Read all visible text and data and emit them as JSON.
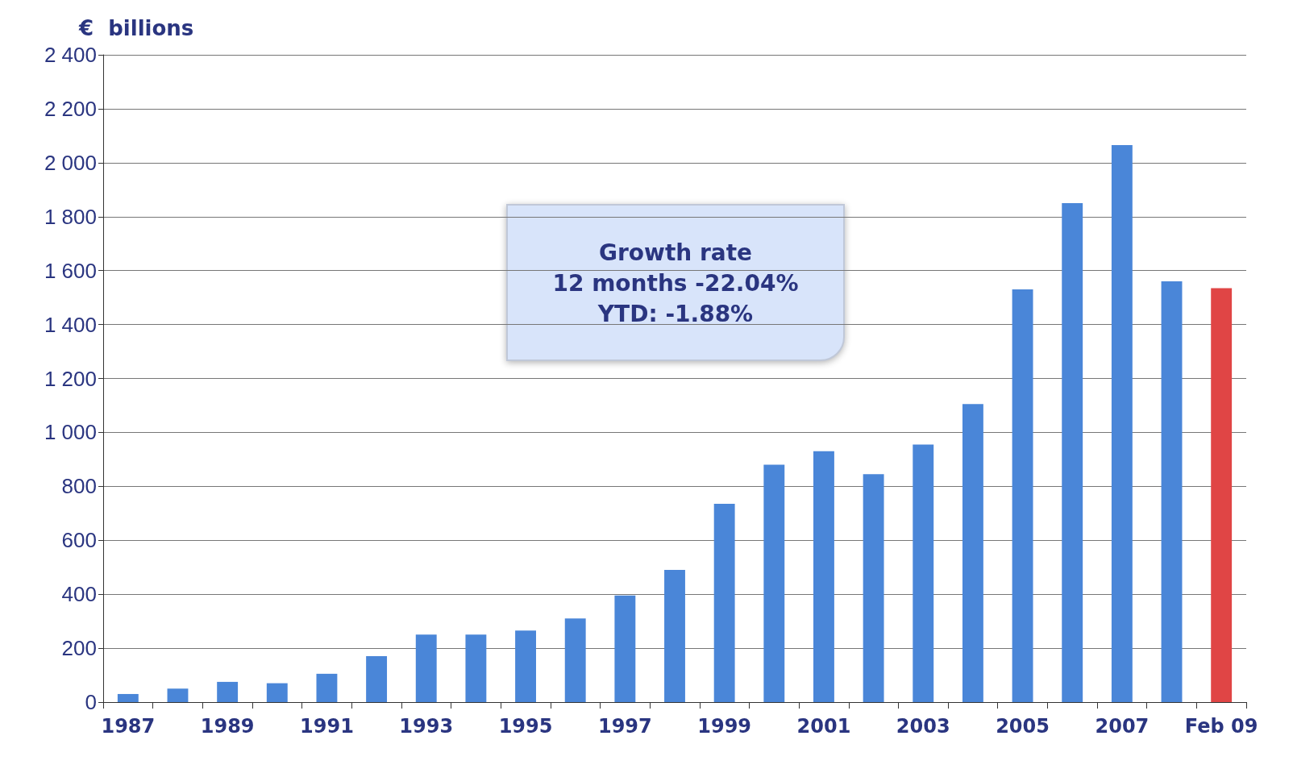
{
  "chart_data": {
    "type": "bar",
    "ylabel": "€  billions",
    "categories": [
      "1987",
      null,
      "1989",
      null,
      "1991",
      null,
      "1993",
      null,
      "1995",
      null,
      "1997",
      null,
      "1999",
      null,
      "2001",
      null,
      "2003",
      null,
      "2005",
      null,
      "2007",
      null,
      "Feb 09"
    ],
    "values": [
      30,
      50,
      75,
      70,
      105,
      170,
      250,
      250,
      265,
      310,
      395,
      490,
      735,
      880,
      930,
      845,
      955,
      1105,
      1530,
      1850,
      2065,
      1560,
      1535
    ],
    "colors": [
      "#4a86d8",
      "#4a86d8",
      "#4a86d8",
      "#4a86d8",
      "#4a86d8",
      "#4a86d8",
      "#4a86d8",
      "#4a86d8",
      "#4a86d8",
      "#4a86d8",
      "#4a86d8",
      "#4a86d8",
      "#4a86d8",
      "#4a86d8",
      "#4a86d8",
      "#4a86d8",
      "#4a86d8",
      "#4a86d8",
      "#4a86d8",
      "#4a86d8",
      "#4a86d8",
      "#4a86d8",
      "#e04545"
    ],
    "ylim": [
      0,
      2400
    ],
    "yticks": [
      0,
      200,
      400,
      600,
      800,
      {
        "value": 1000,
        "label": "1 000"
      },
      {
        "value": 1200,
        "label": "1 200"
      },
      {
        "value": 1400,
        "label": "1 400"
      },
      {
        "value": 1600,
        "label": "1 600"
      },
      {
        "value": 1800,
        "label": "1 800"
      },
      {
        "value": 2000,
        "label": "2 000"
      },
      {
        "value": 2200,
        "label": "2 200"
      },
      {
        "value": 2400,
        "label": "2 400"
      }
    ],
    "grid": "y",
    "annotations": [
      "Growth rate",
      "12 months -22.04%",
      "YTD: -1.88%"
    ]
  }
}
